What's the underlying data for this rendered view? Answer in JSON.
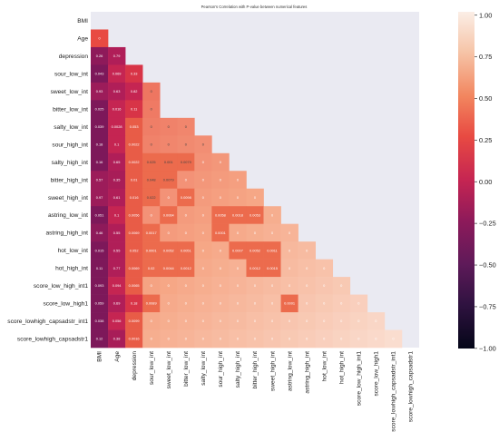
{
  "chart_data": {
    "type": "heatmap",
    "title": "Pearson's Correlation with P-value between numerical features",
    "labels": [
      "BMI",
      "Age",
      "depression",
      "sour_low_int",
      "sweet_low_int",
      "bitter_low_int",
      "salty_low_int",
      "sour_high_int",
      "salty_high_int",
      "bitter_high_int",
      "sweet_high_int",
      "astring_low_int",
      "astring_high_int",
      "hot_low_int",
      "hot_high_int",
      "score_low_high_int1",
      "score_low_high1",
      "score_lowhigh_capsadstr_int1",
      "score_lowhigh_capsadstr1"
    ],
    "mask": "upper-triangle",
    "cell_text": [
      [],
      [
        "0"
      ],
      [
        "0.26",
        "0.79"
      ],
      [
        "0.043",
        "0.069",
        "0.33"
      ],
      [
        "0.93",
        "0.63",
        "0.82",
        "0"
      ],
      [
        "0.025",
        "0.016",
        "0.11",
        "0"
      ],
      [
        "0.039",
        "0.0028",
        "0.053",
        "0",
        "0",
        "0"
      ],
      [
        "0.18",
        "0.1",
        "0.0022",
        "0",
        "0",
        "0",
        "0"
      ],
      [
        "0.16",
        "0.65",
        "0.0022",
        "0.025",
        "0.001",
        "0.0079",
        "0",
        "0"
      ],
      [
        "0.57",
        "0.35",
        "0.01",
        "0.048",
        "0.0079",
        "0",
        "0",
        "0",
        "0"
      ],
      [
        "0.97",
        "0.61",
        "0.016",
        "0.022",
        "0",
        "0.0098",
        "0",
        "0",
        "0",
        "0"
      ],
      [
        "0.051",
        "0.1",
        "0.0056",
        "0",
        "0.0064",
        "0",
        "0",
        "0.0058",
        "0.0018",
        "0.0053",
        "0"
      ],
      [
        "0.46",
        "0.55",
        "0.0069",
        "0.0017",
        "0",
        "0",
        "0",
        "0.0001",
        "0",
        "0",
        "0",
        "0"
      ],
      [
        "0.015",
        "0.55",
        "0.052",
        "0.0001",
        "0.0052",
        "0.0051",
        "0",
        "0",
        "0.0007",
        "0.0052",
        "0.0011",
        "0",
        "0"
      ],
      [
        "0.11",
        "0.77",
        "0.0069",
        "0.02",
        "0.0044",
        "0.0012",
        "0",
        "0",
        "0",
        "0.0012",
        "0.0015",
        "0",
        "0",
        "0"
      ],
      [
        "0.093",
        "0.094",
        "0.0065",
        "0",
        "0",
        "0",
        "0",
        "0",
        "0",
        "0",
        "0",
        "0",
        "0",
        "0",
        "0"
      ],
      [
        "0.059",
        "0.69",
        "0.18",
        "0.0089",
        "0",
        "0",
        "0",
        "0",
        "0",
        "0",
        "0",
        "0.0001",
        "0",
        "0",
        "0",
        "0"
      ],
      [
        "0.038",
        "0.056",
        "0.0099",
        "0",
        "0",
        "0",
        "0",
        "0",
        "0",
        "0",
        "0",
        "0",
        "0",
        "0",
        "0",
        "0",
        "0"
      ],
      [
        "0.12",
        "0.38",
        "0.0016",
        "0",
        "0",
        "0",
        "0",
        "0",
        "0",
        "0",
        "0",
        "0",
        "0",
        "0",
        "0",
        "0",
        "0",
        "0"
      ]
    ],
    "colorbar": {
      "range": [
        -1.0,
        1.0
      ],
      "ticks": [
        "1.00",
        "0.75",
        "0.50",
        "0.25",
        "0.00",
        "−0.25",
        "−0.50",
        "−0.75",
        "−1.00"
      ]
    }
  }
}
